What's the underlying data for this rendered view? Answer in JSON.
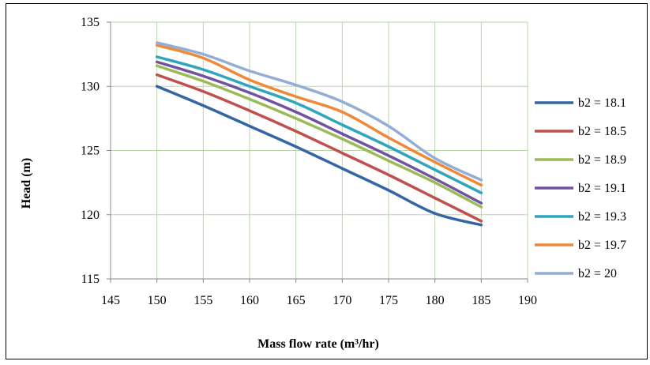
{
  "chart_data": {
    "type": "line",
    "title": "",
    "xlabel": "Mass flow rate (m³/hr)",
    "ylabel": "Head (m)",
    "xlim": [
      145,
      190
    ],
    "ylim": [
      115,
      135
    ],
    "xticks": [
      145,
      150,
      155,
      160,
      165,
      170,
      175,
      180,
      185,
      190
    ],
    "yticks": [
      115,
      120,
      125,
      130,
      135
    ],
    "grid": true,
    "legend_position": "right",
    "x": [
      150,
      155,
      160,
      165,
      170,
      175,
      180,
      185
    ],
    "series": [
      {
        "name": "b2 = 18.1",
        "color": "#3465a4",
        "values": [
          130.0,
          128.5,
          126.9,
          125.3,
          123.6,
          121.9,
          120.1,
          119.2
        ]
      },
      {
        "name": "b2 = 18.5",
        "color": "#c0504d",
        "values": [
          130.9,
          129.6,
          128.1,
          126.5,
          124.8,
          123.1,
          121.3,
          119.5
        ]
      },
      {
        "name": "b2 = 18.9",
        "color": "#9bbb59",
        "values": [
          131.6,
          130.4,
          129.0,
          127.5,
          125.9,
          124.2,
          122.5,
          120.6
        ]
      },
      {
        "name": "b2 = 19.1",
        "color": "#7052a0",
        "values": [
          131.9,
          130.8,
          129.5,
          128.0,
          126.3,
          124.6,
          122.8,
          120.9
        ]
      },
      {
        "name": "b2 = 19.3",
        "color": "#31a4be",
        "values": [
          132.3,
          131.3,
          130.0,
          128.7,
          127.0,
          125.3,
          123.5,
          121.7
        ]
      },
      {
        "name": "b2 = 19.7",
        "color": "#f0883a",
        "values": [
          133.2,
          132.2,
          130.5,
          129.2,
          128.0,
          126.0,
          124.1,
          122.3
        ]
      },
      {
        "name": "b2 = 20",
        "color": "#93aed6",
        "values": [
          133.4,
          132.5,
          131.2,
          130.1,
          128.8,
          126.9,
          124.4,
          122.7
        ]
      }
    ]
  }
}
